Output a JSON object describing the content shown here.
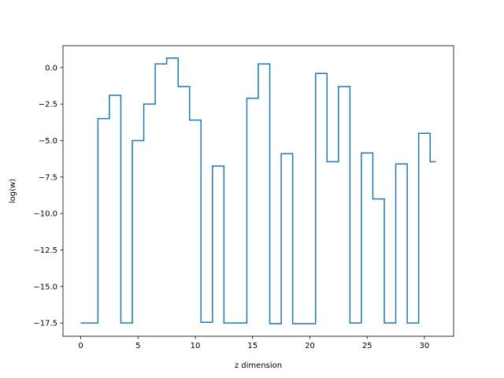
{
  "chart_data": {
    "type": "line",
    "drawstyle": "steps-mid",
    "title": "",
    "xlabel": "z dimension",
    "ylabel": "log(w)",
    "xlim": [
      -1.55,
      32.55
    ],
    "ylim": [
      -18.41,
      1.5
    ],
    "xticks": [
      0,
      5,
      10,
      15,
      20,
      25,
      30
    ],
    "yticks": [
      0.0,
      -2.5,
      -5.0,
      -7.5,
      -10.0,
      -12.5,
      -15.0,
      -17.5
    ],
    "xtick_labels": [
      "0",
      "5",
      "10",
      "15",
      "20",
      "25",
      "30"
    ],
    "ytick_labels": [
      "0.0",
      "−2.5",
      "−5.0",
      "−7.5",
      "−10.0",
      "−12.5",
      "−15.0",
      "−17.5"
    ],
    "grid": false,
    "color": "#1f77b4",
    "series": [
      {
        "x": [
          0,
          1,
          2,
          3,
          4,
          5,
          6,
          7,
          8,
          9,
          10,
          11,
          12,
          13,
          14,
          15,
          16,
          17,
          18,
          19,
          20,
          21,
          22,
          23,
          24,
          25,
          26,
          27,
          28,
          29,
          30,
          31
        ],
        "y": [
          -17.5,
          -17.5,
          -3.5,
          -1.9,
          -17.5,
          -5.0,
          -2.5,
          0.25,
          0.65,
          -1.3,
          -3.6,
          -17.45,
          -6.75,
          -17.5,
          -17.5,
          -2.1,
          0.25,
          -17.55,
          -5.9,
          -17.55,
          -17.55,
          -0.4,
          -6.45,
          -1.3,
          -17.5,
          -5.85,
          -9.0,
          -17.5,
          -6.6,
          -17.5,
          -4.5,
          -6.45
        ]
      }
    ]
  }
}
